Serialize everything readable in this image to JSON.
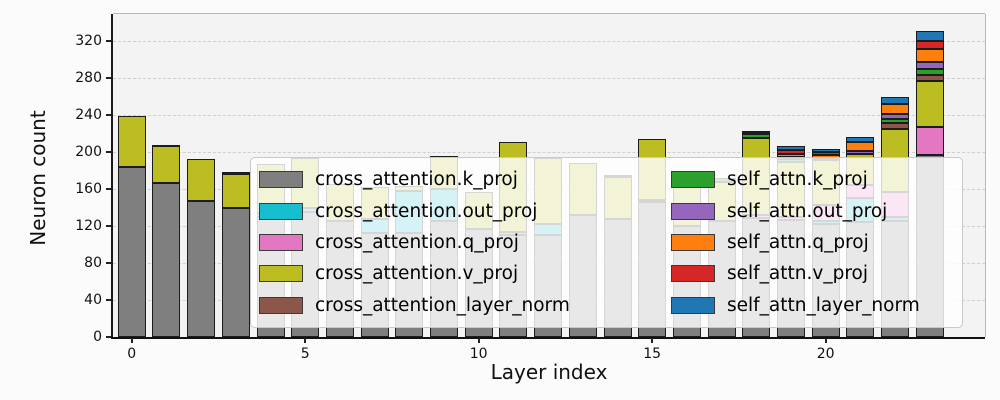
{
  "figure": {
    "xlabel": "Layer index",
    "ylabel": "Neuron count"
  },
  "axes": {
    "yticks": [
      0,
      40,
      80,
      120,
      160,
      200,
      240,
      280,
      320
    ],
    "xticks": [
      0,
      5,
      10,
      15,
      20
    ],
    "ylim": [
      0,
      349
    ],
    "n_layers": 24,
    "grid": "horizontal-dashed"
  },
  "legend": {
    "columns": 2,
    "position": "center-right-overlay"
  },
  "chart_data": {
    "type": "bar",
    "stacked": true,
    "title": "",
    "xlabel": "Layer index",
    "ylabel": "Neuron count",
    "ylim": [
      0,
      349
    ],
    "x": [
      0,
      1,
      2,
      3,
      4,
      5,
      6,
      7,
      8,
      9,
      10,
      11,
      12,
      13,
      14,
      15,
      16,
      17,
      18,
      19,
      20,
      21,
      22,
      23
    ],
    "series": [
      {
        "name": "cross_attention.k_proj",
        "color": "#7f7f7f",
        "values": [
          184,
          166,
          147,
          139,
          130,
          135,
          125,
          112,
          112,
          125,
          117,
          110,
          110,
          132,
          128,
          146,
          120,
          125,
          129,
          126,
          122,
          124,
          125,
          197
        ]
      },
      {
        "name": "cross_attention.out_proj",
        "color": "#17becf",
        "values": [
          0,
          0,
          0,
          0,
          4,
          4,
          0,
          16,
          46,
          35,
          0,
          4,
          12,
          0,
          0,
          2,
          0,
          0,
          0,
          0,
          3,
          26,
          5,
          0
        ]
      },
      {
        "name": "cross_attention.q_proj",
        "color": "#e377c2",
        "values": [
          0,
          0,
          0,
          0,
          0,
          0,
          0,
          0,
          0,
          0,
          0,
          0,
          0,
          0,
          0,
          0,
          0,
          0,
          3,
          4,
          18,
          14,
          27,
          30
        ]
      },
      {
        "name": "cross_attention.v_proj",
        "color": "#bcbd22",
        "values": [
          55,
          40,
          45,
          37,
          53,
          54,
          40,
          34,
          5,
          36,
          40,
          97,
          71,
          56,
          45,
          66,
          50,
          43,
          83,
          59,
          48,
          34,
          68,
          50
        ]
      },
      {
        "name": "cross_attention_layer_norm",
        "color": "#8c564b",
        "values": [
          0,
          2,
          0,
          0,
          0,
          0,
          0,
          0,
          0,
          0,
          0,
          0,
          0,
          0,
          0,
          0,
          0,
          0,
          0,
          0,
          0,
          0,
          6,
          6
        ]
      },
      {
        "name": "self_attn.k_proj",
        "color": "#2ca02c",
        "values": [
          0,
          0,
          0,
          0,
          0,
          0,
          0,
          0,
          0,
          0,
          0,
          0,
          0,
          0,
          0,
          0,
          0,
          4,
          4,
          3,
          0,
          0,
          5,
          7
        ]
      },
      {
        "name": "self_attn.out_proj",
        "color": "#9467bd",
        "values": [
          0,
          0,
          0,
          2,
          0,
          0,
          0,
          0,
          0,
          0,
          0,
          0,
          0,
          0,
          2,
          0,
          0,
          0,
          0,
          3,
          3,
          3,
          5,
          7
        ]
      },
      {
        "name": "self_attn.q_proj",
        "color": "#ff7f0e",
        "values": [
          0,
          0,
          0,
          0,
          0,
          0,
          0,
          0,
          0,
          0,
          0,
          0,
          0,
          0,
          0,
          0,
          0,
          0,
          0,
          3,
          3,
          10,
          11,
          14
        ]
      },
      {
        "name": "self_attn.v_proj",
        "color": "#d62728",
        "values": [
          0,
          0,
          0,
          0,
          0,
          0,
          0,
          0,
          0,
          0,
          0,
          0,
          0,
          0,
          0,
          0,
          0,
          0,
          2,
          4,
          3,
          0,
          0,
          9
        ]
      },
      {
        "name": "self_attn_layer_norm",
        "color": "#1f77b4",
        "values": [
          0,
          0,
          0,
          0,
          0,
          0,
          0,
          0,
          0,
          0,
          0,
          0,
          0,
          0,
          0,
          0,
          0,
          0,
          2,
          4,
          3,
          5,
          7,
          11
        ]
      }
    ],
    "totals": [
      239,
      208,
      192,
      178,
      187,
      193,
      165,
      162,
      163,
      196,
      157,
      211,
      193,
      188,
      175,
      214,
      170,
      172,
      223,
      206,
      203,
      216,
      259,
      331
    ]
  }
}
